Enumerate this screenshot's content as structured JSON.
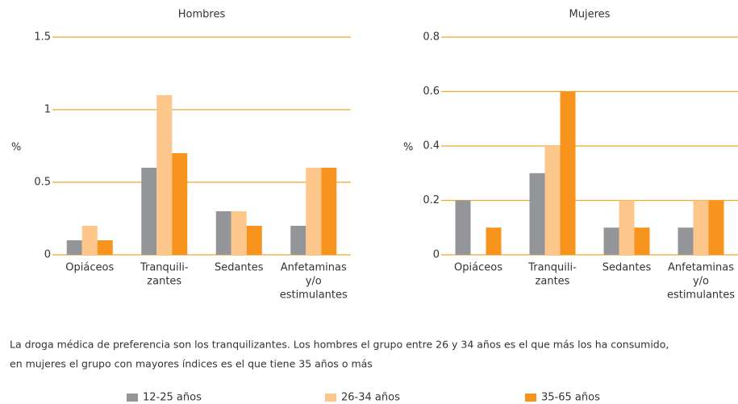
{
  "chart_data": [
    {
      "type": "bar",
      "title": "Hombres",
      "ylabel": "%",
      "categories": [
        [
          "Opiáceos"
        ],
        [
          "Tranquili-",
          "zantes"
        ],
        [
          "Sedantes"
        ],
        [
          "Anfetaminas",
          "y/o",
          "estimulantes"
        ]
      ],
      "series": [
        {
          "name": "12-25 años",
          "color": "#939598",
          "values": [
            0.1,
            0.6,
            0.3,
            0.2
          ]
        },
        {
          "name": "26-34 años",
          "color": "#fdc68a",
          "values": [
            0.2,
            1.1,
            0.3,
            0.6
          ]
        },
        {
          "name": "35-65 años",
          "color": "#f7941d",
          "values": [
            0.1,
            0.7,
            0.2,
            0.6
          ]
        }
      ],
      "ylim": [
        0,
        1.5
      ],
      "yticks": [
        0,
        0.5,
        1,
        1.5
      ],
      "grid": true,
      "grid_color": "#f0a830"
    },
    {
      "type": "bar",
      "title": "Mujeres",
      "ylabel": "%",
      "categories": [
        [
          "Opiáceos"
        ],
        [
          "Tranquili-",
          "zantes"
        ],
        [
          "Sedantes"
        ],
        [
          "Anfetaminas",
          "y/o",
          "estimulantes"
        ]
      ],
      "series": [
        {
          "values": [
            0.2,
            0.3,
            0.1,
            0.1
          ]
        },
        {
          "values": [
            0,
            0.4,
            0.2,
            0.2
          ]
        },
        {
          "values": [
            0.1,
            0.6,
            0.1,
            0.2
          ]
        }
      ],
      "ylim": [
        0,
        0.8
      ],
      "yticks": [
        0,
        0.2,
        0.4,
        0.6,
        0.8
      ],
      "grid": true,
      "grid_color": "#f0a830"
    }
  ],
  "caption": [
    "La droga médica de preferencia son los tranquilizantes. Los hombres el grupo entre 26 y 34 años es el que más los ha consumido,",
    "en mujeres el grupo con mayores índices es el que tiene 35 años o más"
  ]
}
